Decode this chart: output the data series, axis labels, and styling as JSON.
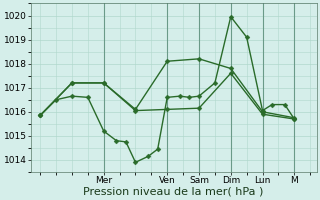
{
  "bg_color": "#d5eeea",
  "grid_color": "#b0d8cc",
  "line_color": "#2a6b2a",
  "ylim": [
    1013.5,
    1020.5
  ],
  "yticks": [
    1014,
    1015,
    1016,
    1017,
    1018,
    1019,
    1020
  ],
  "xlabel": "Pression niveau de la mer( hPa )",
  "xlabel_fontsize": 8,
  "tick_fontsize": 6.5,
  "line_width": 1.0,
  "marker": "D",
  "marker_size": 2.5,
  "day_labels": [
    "Mer",
    "Ven",
    "Sam",
    "Dim",
    "Lun",
    "M"
  ],
  "day_positions": [
    2.0,
    4.0,
    5.0,
    6.0,
    7.0,
    8.0
  ],
  "xlim": [
    -0.3,
    8.7
  ],
  "line1_x": [
    0,
    0.5,
    1.0,
    1.5,
    2.0,
    2.4,
    2.7,
    3.0,
    3.4,
    3.7,
    4.0,
    4.4,
    4.7,
    5.0,
    5.5,
    6.0,
    6.5,
    7.0,
    7.3,
    7.7,
    8.0
  ],
  "line1_y": [
    1015.85,
    1016.5,
    1016.65,
    1016.6,
    1015.2,
    1014.8,
    1014.75,
    1013.9,
    1014.15,
    1014.45,
    1016.6,
    1016.65,
    1016.6,
    1016.65,
    1017.2,
    1019.95,
    1019.1,
    1016.05,
    1016.3,
    1016.3,
    1015.7
  ],
  "line2_x": [
    0,
    1,
    2,
    3,
    4,
    5,
    6,
    7,
    8
  ],
  "line2_y": [
    1015.85,
    1017.2,
    1017.2,
    1016.05,
    1016.1,
    1016.15,
    1017.6,
    1015.9,
    1015.7
  ],
  "line3_x": [
    0,
    1,
    2,
    3,
    4,
    5,
    6,
    7,
    8
  ],
  "line3_y": [
    1015.85,
    1017.2,
    1017.2,
    1016.1,
    1018.1,
    1018.2,
    1017.8,
    1016.0,
    1015.75
  ],
  "sep_color": "#6a9a88",
  "spine_color": "#5a7a6a"
}
